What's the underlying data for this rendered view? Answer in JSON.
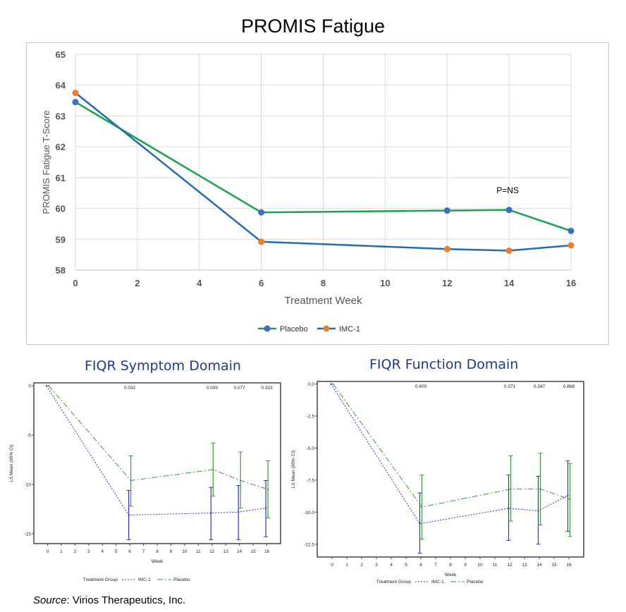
{
  "title": "PROMIS Fatigue",
  "source_label": "Source",
  "source_text": ": Virios Therapeutics, Inc.",
  "chart_data": [
    {
      "type": "line",
      "title": "PROMIS Fatigue",
      "xlabel": "Treatment Week",
      "ylabel": "PROMIS Fatigue T-Score",
      "xlim": [
        0,
        16
      ],
      "ylim": [
        58,
        65
      ],
      "xticks": [
        0,
        2,
        4,
        6,
        8,
        10,
        12,
        14,
        16
      ],
      "yticks": [
        58,
        59,
        60,
        61,
        62,
        63,
        64,
        65
      ],
      "grid": true,
      "legend": "bottom",
      "annotation": "P=NS",
      "series": [
        {
          "name": "Placebo",
          "line_color": "#1aa34a",
          "marker_color": "#3a6fc4",
          "x": [
            0,
            6,
            12,
            14,
            16
          ],
          "y": [
            63.45,
            59.87,
            59.93,
            59.95,
            59.27
          ]
        },
        {
          "name": "IMC-1",
          "line_color": "#1f6db5",
          "marker_color": "#f07b2a",
          "x": [
            0,
            6,
            12,
            14,
            16
          ],
          "y": [
            63.75,
            58.92,
            58.68,
            58.63,
            58.8
          ]
        }
      ]
    },
    {
      "type": "line",
      "title": "FIQR Symptom Domain",
      "xlabel": "Week",
      "ylabel": "LS Mean (95% CI)",
      "legend_title": "Treatment Group",
      "xlim": [
        -1,
        17
      ],
      "ylim": [
        -16,
        0.3
      ],
      "xticks": [
        0,
        1,
        2,
        3,
        4,
        5,
        6,
        7,
        8,
        9,
        10,
        11,
        12,
        13,
        14,
        15,
        16
      ],
      "yticks": [
        0,
        -5,
        -10,
        -15
      ],
      "ytick_labels": [
        "0",
        "-5",
        "-10",
        "-15"
      ],
      "p_values": [
        {
          "x": 6,
          "label": "0.032"
        },
        {
          "x": 12,
          "label": "0.009"
        },
        {
          "x": 14,
          "label": "0.077"
        },
        {
          "x": 16,
          "label": "0.323"
        }
      ],
      "series": [
        {
          "name": "IMC-1",
          "color": "#3030d0",
          "dash": "dotted",
          "x": [
            0,
            6,
            12,
            14,
            16
          ],
          "y": [
            0,
            -13.1,
            -12.9,
            -12.8,
            -12.4
          ],
          "ci_low": [
            null,
            -15.6,
            -15.6,
            -15.6,
            -15.3
          ],
          "ci_high": [
            null,
            -10.6,
            -10.3,
            -10.1,
            -9.6
          ]
        },
        {
          "name": "Placebo",
          "color": "#3a9a3a",
          "dash": "dashdot",
          "x": [
            0,
            6,
            12,
            14,
            16
          ],
          "y": [
            0,
            -9.6,
            -8.5,
            -9.6,
            -10.5
          ],
          "ci_low": [
            null,
            -12.2,
            -11.2,
            -12.4,
            -13.4
          ],
          "ci_high": [
            null,
            -7.1,
            -5.8,
            -6.7,
            -7.6
          ]
        }
      ]
    },
    {
      "type": "line",
      "title": "FIQR Function Domain",
      "xlabel": "Week",
      "ylabel": "LS Mean (95% CI)",
      "legend_title": "Treatment Group",
      "xlim": [
        -1,
        17
      ],
      "ylim": [
        -13.5,
        0.2
      ],
      "xticks": [
        0,
        1,
        2,
        3,
        4,
        5,
        6,
        7,
        8,
        9,
        10,
        11,
        12,
        13,
        14,
        15,
        16
      ],
      "yticks": [
        0,
        -2.5,
        -5,
        -7.5,
        -10,
        -12.5
      ],
      "ytick_labels": [
        "0.0",
        "-2.5",
        "-5.0",
        "-7.5",
        "-10.0",
        "-12.5"
      ],
      "p_values": [
        {
          "x": 6,
          "label": "0.409"
        },
        {
          "x": 12,
          "label": "0.371"
        },
        {
          "x": 14,
          "label": "0.347"
        },
        {
          "x": 16,
          "label": "0.868"
        }
      ],
      "series": [
        {
          "name": "IMC-1",
          "color": "#3030d0",
          "dash": "dotted",
          "x": [
            0,
            6,
            12,
            14,
            16
          ],
          "y": [
            0,
            -10.9,
            -9.7,
            -9.9,
            -8.7
          ],
          "ci_low": [
            null,
            -13.2,
            -12.2,
            -12.5,
            -11.5
          ],
          "ci_high": [
            null,
            -8.5,
            -7.1,
            -7.2,
            -6.0
          ]
        },
        {
          "name": "Placebo",
          "color": "#3a9a3a",
          "dash": "dashdot",
          "x": [
            0,
            6,
            12,
            14,
            16
          ],
          "y": [
            0,
            -9.6,
            -8.2,
            -8.2,
            -9.0
          ],
          "ci_low": [
            null,
            -12.1,
            -10.7,
            -11.0,
            -11.9
          ],
          "ci_high": [
            null,
            -7.1,
            -5.6,
            -5.4,
            -6.2
          ]
        }
      ]
    }
  ]
}
